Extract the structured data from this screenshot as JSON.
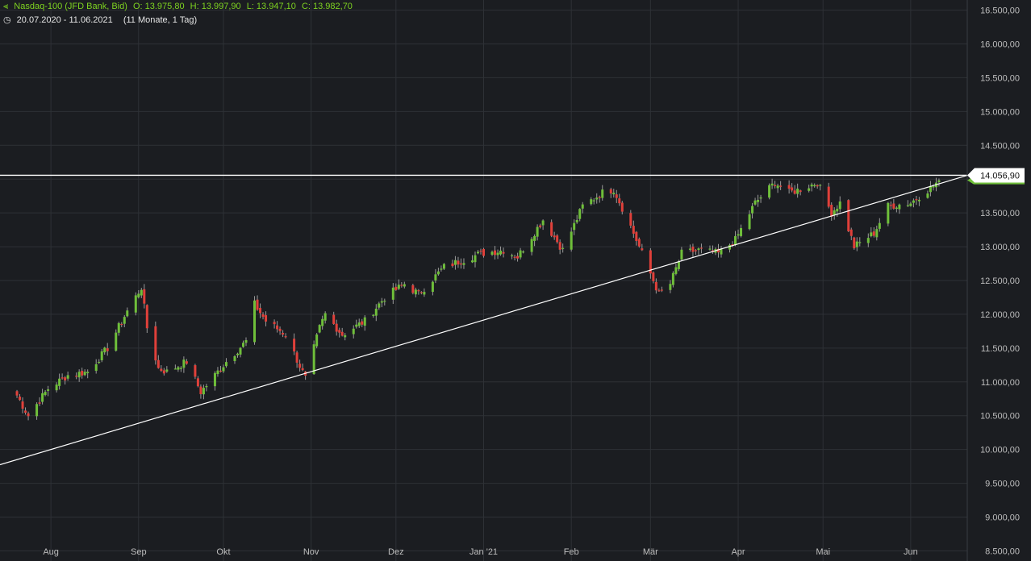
{
  "header": {
    "instrument": "Nasdaq-100 (JFD Bank, Bid)",
    "open": "O: 13.975,80",
    "high": "H: 13.997,90",
    "low": "L: 13.947,10",
    "close": "C: 13.982,70",
    "range": "20.07.2020 - 11.06.2021",
    "period": "(11 Monate, 1 Tag)",
    "chart_icon": "candles-icon",
    "clock_icon": "clock-icon"
  },
  "colors": {
    "background": "#1b1d21",
    "grid": "#2e3136",
    "up": "#6fbf3a",
    "down": "#e0403a",
    "line": "#ffffff",
    "accent": "#7ed321"
  },
  "chart_data": {
    "type": "candlestick",
    "x_range": [
      "2020-07-20",
      "2021-06-11"
    ],
    "ylim": [
      8350,
      16650
    ],
    "grid": true,
    "y_ticks": [
      8500,
      9000,
      9500,
      10000,
      10500,
      11000,
      11500,
      12000,
      12500,
      13000,
      13500,
      14000,
      14500,
      15000,
      15500,
      16000,
      16500
    ],
    "y_tick_labels": [
      "8.500,00",
      "9.000,00",
      "9.500,00",
      "10.000,00",
      "10.500,00",
      "11.000,00",
      "11.500,00",
      "12.000,00",
      "12.500,00",
      "13.000,00",
      "13.500,00",
      "14.000,00",
      "14.500,00",
      "15.000,00",
      "15.500,00",
      "16.000,00",
      "16.500,00"
    ],
    "x_ticks": [
      {
        "date": "2020-08-01",
        "label": "Aug"
      },
      {
        "date": "2020-09-01",
        "label": "Sep"
      },
      {
        "date": "2020-10-01",
        "label": "Okt"
      },
      {
        "date": "2020-11-01",
        "label": "Nov"
      },
      {
        "date": "2020-12-01",
        "label": "Dez"
      },
      {
        "date": "2021-01-01",
        "label": "Jan '21"
      },
      {
        "date": "2021-02-01",
        "label": "Feb"
      },
      {
        "date": "2021-03-01",
        "label": "Mär"
      },
      {
        "date": "2021-04-01",
        "label": "Apr"
      },
      {
        "date": "2021-05-01",
        "label": "Mai"
      },
      {
        "date": "2021-06-01",
        "label": "Jun"
      }
    ],
    "horizontal_line": {
      "value": 14056.9,
      "label": "14.056,90"
    },
    "last_price": 13982.7,
    "trendline": [
      {
        "date": "2020-07-20",
        "value": 9850
      },
      {
        "date": "2021-06-11",
        "value": 13930
      }
    ],
    "closes": [
      {
        "date": "2020-07-20",
        "close": 10800
      },
      {
        "date": "2020-07-24",
        "close": 10500
      },
      {
        "date": "2020-07-31",
        "close": 10900
      },
      {
        "date": "2020-08-07",
        "close": 11100
      },
      {
        "date": "2020-08-14",
        "close": 11150
      },
      {
        "date": "2020-08-21",
        "close": 11500
      },
      {
        "date": "2020-08-28",
        "close": 12050
      },
      {
        "date": "2020-09-02",
        "close": 12400
      },
      {
        "date": "2020-09-04",
        "close": 11800
      },
      {
        "date": "2020-09-08",
        "close": 11200
      },
      {
        "date": "2020-09-11",
        "close": 11150
      },
      {
        "date": "2020-09-18",
        "close": 11300
      },
      {
        "date": "2020-09-23",
        "close": 10850
      },
      {
        "date": "2020-10-02",
        "close": 11300
      },
      {
        "date": "2020-10-09",
        "close": 11600
      },
      {
        "date": "2020-10-12",
        "close": 12150
      },
      {
        "date": "2020-10-16",
        "close": 11900
      },
      {
        "date": "2020-10-23",
        "close": 11700
      },
      {
        "date": "2020-10-30",
        "close": 11050
      },
      {
        "date": "2020-11-04",
        "close": 11800
      },
      {
        "date": "2020-11-06",
        "close": 12000
      },
      {
        "date": "2020-11-12",
        "close": 11700
      },
      {
        "date": "2020-11-20",
        "close": 11900
      },
      {
        "date": "2020-11-27",
        "close": 12250
      },
      {
        "date": "2020-12-04",
        "close": 12450
      },
      {
        "date": "2020-12-09",
        "close": 12300
      },
      {
        "date": "2020-12-18",
        "close": 12700
      },
      {
        "date": "2020-12-31",
        "close": 12900
      },
      {
        "date": "2021-01-08",
        "close": 12950
      },
      {
        "date": "2021-01-13",
        "close": 12850
      },
      {
        "date": "2021-01-22",
        "close": 13400
      },
      {
        "date": "2021-01-29",
        "close": 12950
      },
      {
        "date": "2021-02-05",
        "close": 13600
      },
      {
        "date": "2021-02-12",
        "close": 13800
      },
      {
        "date": "2021-02-16",
        "close": 13850
      },
      {
        "date": "2021-02-22",
        "close": 13300
      },
      {
        "date": "2021-02-26",
        "close": 12900
      },
      {
        "date": "2021-03-04",
        "close": 12300
      },
      {
        "date": "2021-03-08",
        "close": 12450
      },
      {
        "date": "2021-03-12",
        "close": 12900
      },
      {
        "date": "2021-03-18",
        "close": 12950
      },
      {
        "date": "2021-03-25",
        "close": 12900
      },
      {
        "date": "2021-03-31",
        "close": 13100
      },
      {
        "date": "2021-04-07",
        "close": 13650
      },
      {
        "date": "2021-04-14",
        "close": 13950
      },
      {
        "date": "2021-04-19",
        "close": 13800
      },
      {
        "date": "2021-04-23",
        "close": 13850
      },
      {
        "date": "2021-04-29",
        "close": 13950
      },
      {
        "date": "2021-05-04",
        "close": 13500
      },
      {
        "date": "2021-05-07",
        "close": 13650
      },
      {
        "date": "2021-05-12",
        "close": 13000
      },
      {
        "date": "2021-05-19",
        "close": 13200
      },
      {
        "date": "2021-05-24",
        "close": 13600
      },
      {
        "date": "2021-06-01",
        "close": 13650
      },
      {
        "date": "2021-06-04",
        "close": 13750
      },
      {
        "date": "2021-06-09",
        "close": 13900
      },
      {
        "date": "2021-06-11",
        "close": 13982.7
      }
    ]
  }
}
